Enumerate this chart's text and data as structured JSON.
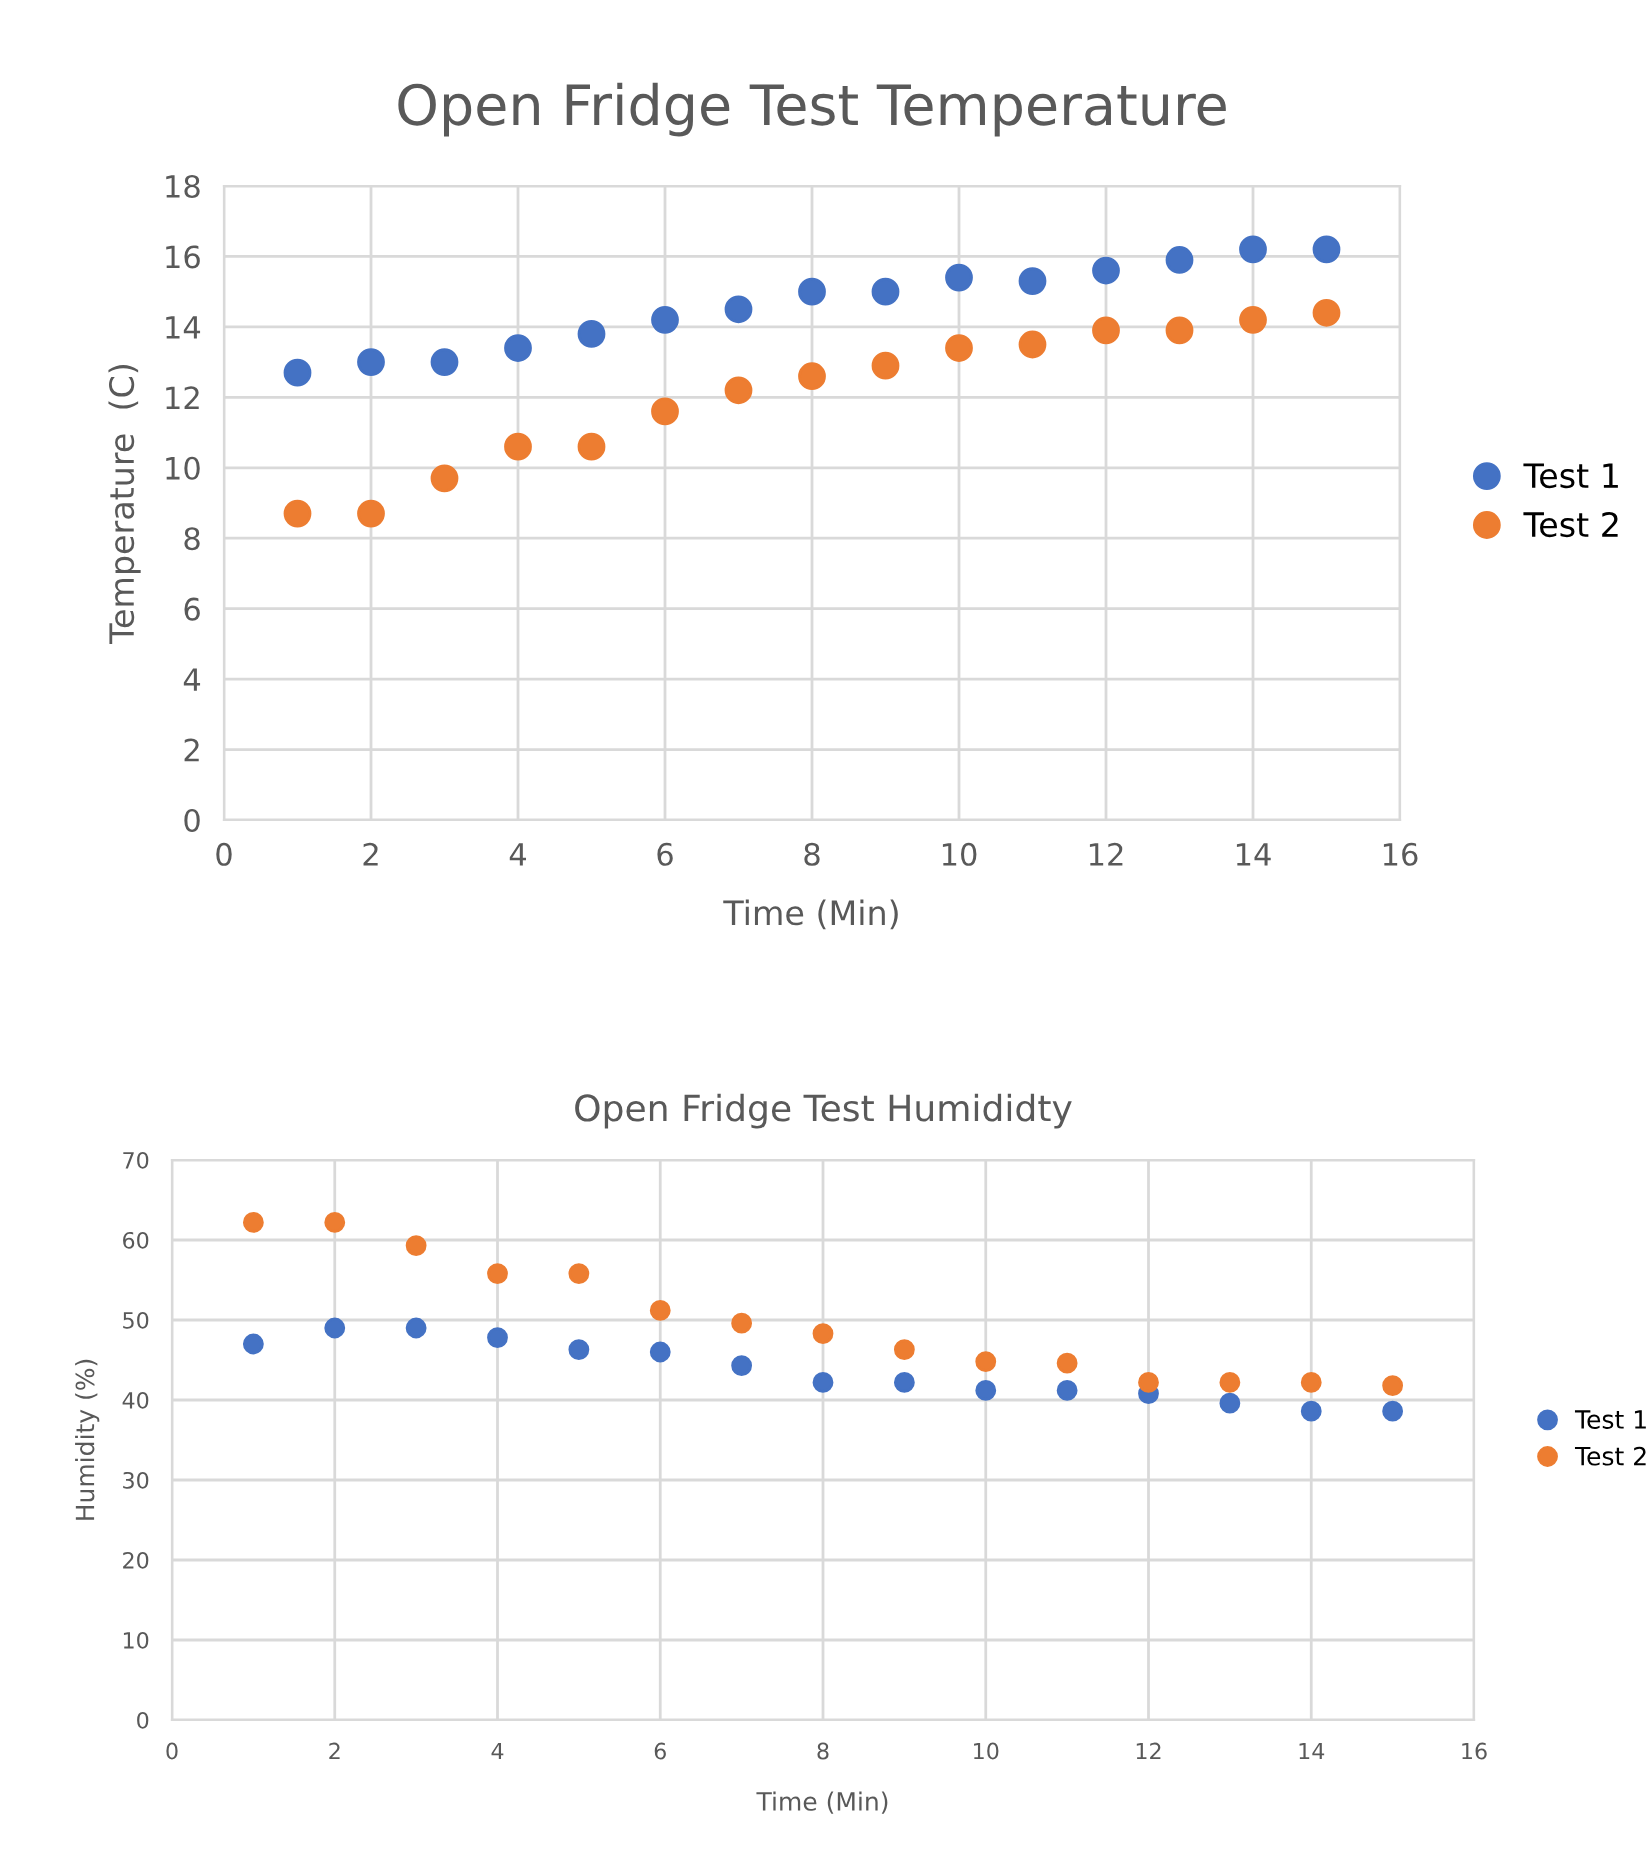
{
  "chart_data": [
    {
      "type": "scatter",
      "title": "Open Fridge Test Temperature",
      "xlabel": "Time (Min)",
      "ylabel": "Temperature  (C)",
      "x": [
        1,
        2,
        3,
        4,
        5,
        6,
        7,
        8,
        9,
        10,
        11,
        12,
        13,
        14,
        15
      ],
      "xlim": [
        0,
        16
      ],
      "xticks": [
        0,
        2,
        4,
        6,
        8,
        10,
        12,
        14,
        16
      ],
      "ylim": [
        0,
        18
      ],
      "yticks": [
        0,
        2,
        4,
        6,
        8,
        10,
        12,
        14,
        16,
        18
      ],
      "grid": true,
      "legend": "right",
      "marker": "circle",
      "series": [
        {
          "name": "Test 1",
          "color": "#4472c4",
          "values": [
            12.7,
            13.0,
            13.0,
            13.4,
            13.8,
            14.2,
            14.5,
            15.0,
            15.0,
            15.4,
            15.3,
            15.6,
            15.9,
            16.2,
            16.2
          ]
        },
        {
          "name": "Test 2",
          "color": "#ed7d31",
          "values": [
            8.7,
            8.7,
            9.7,
            10.6,
            10.6,
            11.6,
            12.2,
            12.6,
            12.9,
            13.4,
            13.5,
            13.9,
            13.9,
            14.2,
            14.4
          ]
        }
      ]
    },
    {
      "type": "scatter",
      "title": "Open Fridge Test Humididty",
      "xlabel": "Time (Min)",
      "ylabel": "Humidity (%)",
      "x": [
        1,
        2,
        3,
        4,
        5,
        6,
        7,
        8,
        9,
        10,
        11,
        12,
        13,
        14,
        15
      ],
      "xlim": [
        0,
        16
      ],
      "xticks": [
        0,
        2,
        4,
        6,
        8,
        10,
        12,
        14,
        16
      ],
      "ylim": [
        0,
        70
      ],
      "yticks": [
        0,
        10,
        20,
        30,
        40,
        50,
        60,
        70
      ],
      "grid": true,
      "legend": "right",
      "marker": "circle",
      "series": [
        {
          "name": "Test 1",
          "color": "#4472c4",
          "values": [
            47,
            49,
            49,
            47.8,
            46.3,
            46,
            44.3,
            42.2,
            42.2,
            41.2,
            41.2,
            40.8,
            39.6,
            38.6,
            38.6
          ]
        },
        {
          "name": "Test 2",
          "color": "#ed7d31",
          "values": [
            62.2,
            62.2,
            59.3,
            55.8,
            55.8,
            51.2,
            49.6,
            48.3,
            46.3,
            44.8,
            44.6,
            42.2,
            42.2,
            42.2,
            41.8
          ]
        }
      ]
    }
  ]
}
